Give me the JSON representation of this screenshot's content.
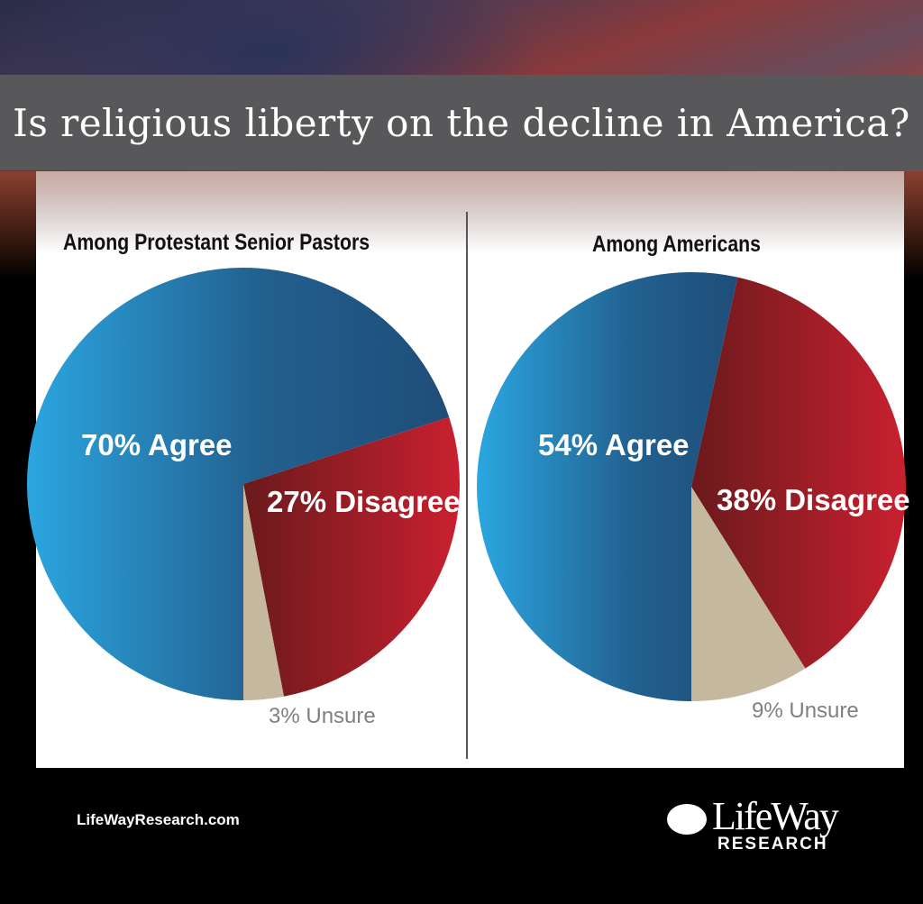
{
  "title": "Is religious liberty on the decline in America?",
  "footer": {
    "website": "LifeWayResearch.com",
    "logo_text": "LifeWay",
    "logo_subtext": "RESEARCH"
  },
  "colors": {
    "agree_light": "#2ba6e0",
    "agree_dark": "#1f4d78",
    "disagree_dark": "#6a1a1c",
    "disagree_light": "#c9202f",
    "unsure": "#c4b89e"
  },
  "chart_data": [
    {
      "type": "pie",
      "title": "Among Protestant Senior Pastors",
      "slices": [
        {
          "label": "70% Agree",
          "category": "Agree",
          "value": 70
        },
        {
          "label": "27% Disagree",
          "category": "Disagree",
          "value": 27
        },
        {
          "label": "3% Unsure",
          "category": "Unsure",
          "value": 3
        }
      ]
    },
    {
      "type": "pie",
      "title": "Among Americans",
      "slices": [
        {
          "label": "54% Agree",
          "category": "Agree",
          "value": 54
        },
        {
          "label": "38% Disagree",
          "category": "Disagree",
          "value": 38
        },
        {
          "label": "9% Unsure",
          "category": "Unsure",
          "value": 9
        }
      ]
    }
  ]
}
